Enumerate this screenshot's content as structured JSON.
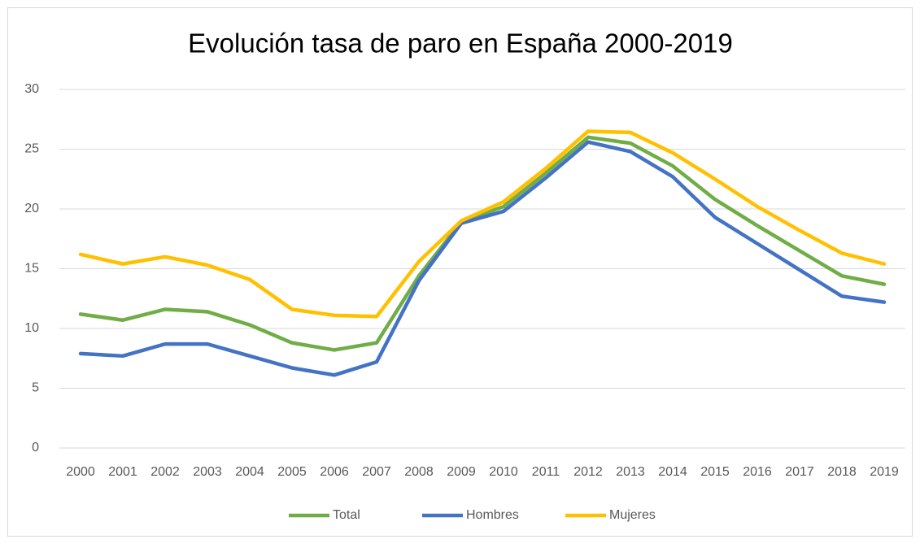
{
  "chart_data": {
    "type": "line",
    "title": "Evolución tasa de paro en España 2000-2019",
    "categories": [
      "2000",
      "2001",
      "2002",
      "2003",
      "2004",
      "2005",
      "2006",
      "2007",
      "2008",
      "2009",
      "2010",
      "2011",
      "2012",
      "2013",
      "2014",
      "2015",
      "2016",
      "2017",
      "2018",
      "2019"
    ],
    "series": [
      {
        "name": "Total",
        "color": "#70ad47",
        "values": [
          11.2,
          10.7,
          11.6,
          11.4,
          10.3,
          8.8,
          8.2,
          8.8,
          14.4,
          18.9,
          20.2,
          23.0,
          26.0,
          25.5,
          23.6,
          20.8,
          18.6,
          16.5,
          14.4,
          13.7
        ]
      },
      {
        "name": "Hombres",
        "color": "#4472c4",
        "values": [
          7.9,
          7.7,
          8.7,
          8.7,
          7.7,
          6.7,
          6.1,
          7.2,
          14.0,
          18.8,
          19.8,
          22.6,
          25.6,
          24.8,
          22.7,
          19.3,
          17.1,
          14.9,
          12.7,
          12.2
        ]
      },
      {
        "name": "Mujeres",
        "color": "#ffc000",
        "values": [
          16.2,
          15.4,
          16.0,
          15.3,
          14.1,
          11.6,
          11.1,
          11.0,
          15.6,
          19.0,
          20.6,
          23.4,
          26.5,
          26.4,
          24.7,
          22.5,
          20.2,
          18.2,
          16.3,
          15.4
        ]
      }
    ],
    "ylim": [
      0,
      30
    ],
    "yticks": [
      0,
      5,
      10,
      15,
      20,
      25,
      30
    ],
    "grid": true,
    "legend": "bottom"
  }
}
